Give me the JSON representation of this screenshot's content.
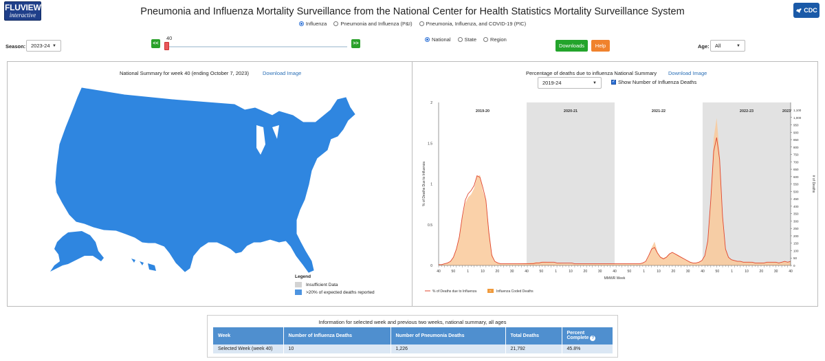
{
  "brand": {
    "fluview_line1": "FLUVIEW",
    "fluview_line2": "interactive",
    "cdc_text": "CDC"
  },
  "title": "Pneumonia and Influenza Mortality Surveillance from the National Center for Health Statistics Mortality Surveillance System",
  "metric_options": [
    {
      "label": "Influenza",
      "selected": true
    },
    {
      "label": "Pneumonia and Influenza (P&I)",
      "selected": false
    },
    {
      "label": "Pneumonia, Influenza, and COVID-19 (PIC)",
      "selected": false
    }
  ],
  "season": {
    "label": "Season:",
    "value": "2023-24"
  },
  "week_slider": {
    "value": "40",
    "prev_label": "<<",
    "next_label": ">>",
    "fraction": 0.0
  },
  "geo_options": [
    {
      "label": "National",
      "selected": true
    },
    {
      "label": "State",
      "selected": false
    },
    {
      "label": "Region",
      "selected": false
    }
  ],
  "buttons": {
    "downloads": "Downloads",
    "help": "Help"
  },
  "age": {
    "label": "Age:",
    "value": "All"
  },
  "map_panel": {
    "title": "National Summary for week 40 (ending October 7, 2023)",
    "download_link": "Download Image",
    "legend_title": "Legend",
    "legend_items": [
      {
        "label": "Insufficient Data",
        "color": "#d3d3d3"
      },
      {
        "label": ">20% of expected deaths reported",
        "color": "#4d94e0"
      }
    ],
    "map_color": "#2f86e0"
  },
  "chart_panel": {
    "title": "Percentage of deaths due to influenza National Summary",
    "download_link": "Download Image",
    "season_select": "2019-24",
    "show_deaths_label": "Show Number of Influenza Deaths",
    "show_deaths_checked": true
  },
  "chart_data": {
    "type": "line",
    "xlabel": "MMWR Week",
    "ylabel": "% of Deaths Due to Influenza",
    "y2label": "# of Deaths",
    "ylim": [
      0,
      2
    ],
    "y_ticks": [
      "0",
      "0.5",
      "1",
      "1.5",
      "2"
    ],
    "y2lim": [
      0,
      1100
    ],
    "y2_ticks": [
      "0",
      "50",
      "100",
      "150",
      "200",
      "250",
      "300",
      "350",
      "400",
      "450",
      "500",
      "550",
      "600",
      "650",
      "700",
      "750",
      "800",
      "850",
      "900",
      "950",
      "1,000",
      "1,100"
    ],
    "x_ticks": [
      "40",
      "50",
      "1",
      "10",
      "20",
      "30",
      "40",
      "50",
      "1",
      "10",
      "20",
      "30",
      "40",
      "50",
      "1",
      "10",
      "20",
      "30",
      "40",
      "50",
      "1",
      "10",
      "20",
      "30",
      "40"
    ],
    "season_bands": [
      {
        "label": "2019-20",
        "shaded": false
      },
      {
        "label": "2020-21",
        "shaded": true
      },
      {
        "label": "2021-22",
        "shaded": false
      },
      {
        "label": "2022-23",
        "shaded": true
      },
      {
        "label": "2023",
        "shaded": false
      }
    ],
    "series": [
      {
        "name": "% of Deaths due to Influenza",
        "type": "line",
        "color": "#e0452e",
        "values": [
          0.01,
          0.01,
          0.02,
          0.03,
          0.05,
          0.1,
          0.2,
          0.35,
          0.6,
          0.8,
          0.88,
          0.92,
          0.98,
          1.1,
          1.08,
          0.95,
          0.8,
          0.4,
          0.12,
          0.05,
          0.03,
          0.02,
          0.02,
          0.02,
          0.02,
          0.02,
          0.02,
          0.02,
          0.02,
          0.02,
          0.02,
          0.02,
          0.02,
          0.03,
          0.03,
          0.04,
          0.04,
          0.04,
          0.04,
          0.04,
          0.03,
          0.03,
          0.03,
          0.03,
          0.03,
          0.03,
          0.02,
          0.02,
          0.02,
          0.02,
          0.02,
          0.02,
          0.02,
          0.02,
          0.02,
          0.02,
          0.02,
          0.02,
          0.02,
          0.02,
          0.02,
          0.02,
          0.02,
          0.02,
          0.02,
          0.02,
          0.02,
          0.02,
          0.02,
          0.03,
          0.05,
          0.12,
          0.2,
          0.22,
          0.15,
          0.1,
          0.08,
          0.1,
          0.14,
          0.16,
          0.14,
          0.12,
          0.1,
          0.08,
          0.06,
          0.04,
          0.03,
          0.03,
          0.04,
          0.06,
          0.12,
          0.3,
          0.8,
          1.4,
          1.57,
          1.3,
          0.6,
          0.2,
          0.1,
          0.07,
          0.06,
          0.05,
          0.05,
          0.04,
          0.04,
          0.04,
          0.04,
          0.03,
          0.03,
          0.03,
          0.03,
          0.04,
          0.04,
          0.04,
          0.04,
          0.03,
          0.04,
          0.05,
          0.04,
          0.05
        ]
      },
      {
        "name": "Influenza Coded Deaths",
        "type": "area",
        "color": "#f9c99a",
        "values": [
          5,
          6,
          10,
          15,
          25,
          55,
          110,
          190,
          320,
          420,
          460,
          480,
          520,
          600,
          610,
          500,
          440,
          250,
          80,
          30,
          15,
          10,
          10,
          10,
          10,
          10,
          10,
          12,
          14,
          15,
          16,
          18,
          20,
          22,
          22,
          24,
          24,
          22,
          20,
          18,
          15,
          14,
          12,
          12,
          12,
          12,
          10,
          10,
          10,
          10,
          10,
          10,
          10,
          10,
          10,
          10,
          10,
          10,
          10,
          10,
          10,
          10,
          10,
          10,
          10,
          10,
          10,
          10,
          10,
          15,
          25,
          60,
          120,
          160,
          90,
          60,
          50,
          60,
          80,
          90,
          80,
          70,
          55,
          45,
          35,
          25,
          18,
          18,
          22,
          35,
          70,
          180,
          460,
          860,
          995,
          760,
          350,
          120,
          60,
          40,
          35,
          30,
          30,
          25,
          25,
          25,
          22,
          20,
          20,
          20,
          20,
          22,
          22,
          22,
          22,
          20,
          22,
          28,
          24,
          26
        ]
      }
    ],
    "legend": [
      "% of Deaths due to Influenza",
      "Influenza Coded Deaths"
    ]
  },
  "table": {
    "caption": "Information for selected week and previous two weeks, national summary, all ages",
    "headers": [
      "Week",
      "Number of Influenza Deaths",
      "Number of Pneumonia Deaths",
      "Total Deaths",
      "Percent Complete"
    ],
    "rows": [
      [
        "Selected Week (week 40)",
        "10",
        "1,226",
        "21,792",
        "45.8%"
      ]
    ]
  }
}
